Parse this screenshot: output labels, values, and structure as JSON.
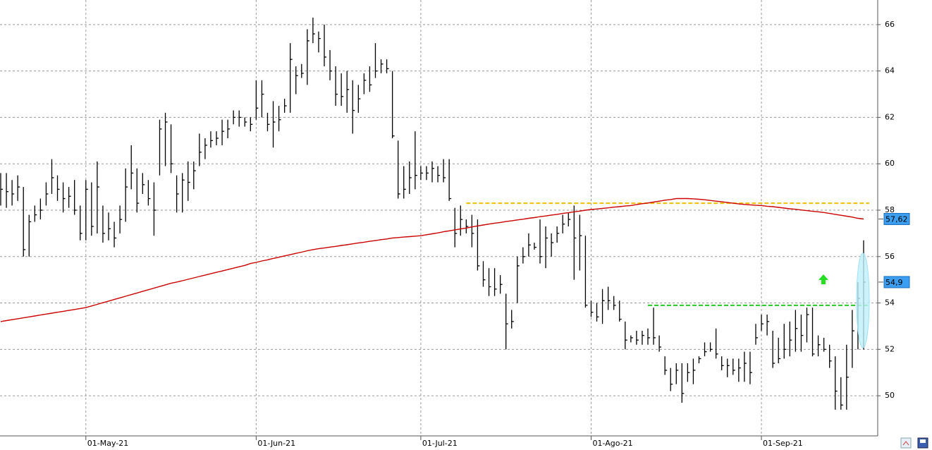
{
  "chart_data": {
    "type": "ohlc",
    "categories": [
      null,
      null,
      null,
      null,
      null,
      null,
      null,
      null,
      null,
      null,
      null,
      null,
      null,
      null,
      null,
      "01-May-21",
      null,
      null,
      null,
      null,
      null,
      null,
      null,
      null,
      null,
      null,
      null,
      null,
      null,
      null,
      null,
      null,
      null,
      null,
      null,
      null,
      null,
      null,
      null,
      null,
      null,
      null,
      null,
      null,
      null,
      "01-Jun-21",
      null,
      null,
      null,
      null,
      null,
      null,
      null,
      null,
      null,
      null,
      null,
      null,
      null,
      null,
      null,
      null,
      null,
      null,
      null,
      null,
      null,
      null,
      null,
      null,
      null,
      null,
      null,
      null,
      "01-Jul-21",
      null,
      null,
      null,
      null,
      null,
      null,
      null,
      null,
      null,
      null,
      null,
      null,
      null,
      null,
      null,
      null,
      null,
      null,
      null,
      null,
      null,
      null,
      null,
      null,
      null,
      null,
      null,
      null,
      null,
      "01-Ago-21",
      null,
      null,
      null,
      null,
      null,
      null,
      null,
      null,
      null,
      null,
      null,
      null,
      null,
      null,
      null,
      null,
      null,
      null,
      null,
      null,
      null,
      null,
      null,
      null,
      null,
      null,
      null,
      null,
      null,
      "01-Sep-21",
      null,
      null,
      null,
      null,
      null,
      null,
      null,
      null,
      null,
      null,
      null,
      null,
      null,
      null,
      null,
      null,
      null,
      null
    ],
    "high": [
      59.6,
      59.6,
      59.3,
      59.5,
      59.0,
      57.8,
      58.2,
      58.5,
      59.2,
      60.2,
      59.5,
      59.2,
      59.0,
      59.3,
      58.2,
      59.3,
      59.2,
      60.1,
      58.2,
      57.9,
      57.5,
      58.2,
      59.8,
      60.8,
      59.8,
      59.6,
      59.3,
      59.2,
      61.9,
      62.2,
      61.7,
      59.5,
      59.6,
      60.1,
      60.1,
      61.3,
      61.1,
      61.4,
      61.4,
      61.9,
      61.9,
      62.3,
      62.3,
      62.0,
      62.0,
      63.6,
      63.6,
      62.2,
      62.7,
      62.5,
      62.8,
      65.2,
      64.2,
      64.3,
      65.8,
      66.3,
      65.7,
      66.0,
      64.9,
      64.2,
      63.9,
      64.0,
      63.6,
      63.4,
      63.9,
      64.2,
      65.2,
      64.5,
      64.5,
      64.0,
      61.0,
      59.9,
      60.1,
      61.4,
      59.9,
      59.9,
      60.1,
      59.9,
      60.2,
      60.2,
      58.1,
      58.2,
      57.6,
      57.8,
      57.6,
      55.8,
      55.5,
      55.5,
      55.2,
      54.4,
      53.7,
      56.0,
      56.4,
      57.0,
      56.6,
      57.6,
      57.3,
      57.0,
      57.3,
      57.8,
      57.9,
      58.2,
      57.8,
      56.9,
      54.1,
      54.0,
      54.6,
      54.7,
      54.3,
      54.1,
      53.2,
      52.6,
      52.8,
      52.8,
      52.9,
      53.8,
      52.6,
      51.7,
      51.2,
      51.4,
      51.4,
      51.4,
      51.6,
      51.7,
      52.3,
      52.3,
      52.9,
      51.7,
      51.6,
      51.6,
      51.6,
      51.9,
      51.9,
      53.1,
      53.5,
      53.5,
      52.8,
      52.5,
      53.1,
      53.2,
      53.7,
      53.5,
      53.8,
      53.8,
      52.6,
      52.5,
      52.2,
      51.7,
      50.8,
      52.2,
      53.7,
      54.9,
      56.7
    ],
    "low": [
      58.2,
      58.1,
      58.2,
      58.4,
      56.0,
      56.0,
      57.5,
      57.6,
      58.2,
      58.7,
      58.4,
      57.9,
      58.1,
      57.8,
      56.7,
      56.7,
      56.9,
      57.0,
      56.6,
      56.7,
      56.4,
      57.0,
      57.5,
      58.9,
      57.9,
      58.7,
      58.2,
      56.9,
      59.5,
      59.9,
      59.6,
      57.9,
      57.9,
      58.4,
      58.9,
      59.9,
      60.2,
      60.7,
      60.8,
      60.8,
      61.1,
      61.7,
      61.6,
      61.6,
      61.4,
      61.9,
      62.0,
      61.4,
      60.7,
      61.4,
      62.2,
      62.2,
      63.0,
      63.7,
      63.4,
      65.2,
      64.8,
      64.2,
      63.6,
      62.5,
      62.5,
      62.2,
      61.3,
      62.2,
      63.0,
      63.1,
      63.7,
      63.9,
      63.9,
      61.1,
      58.5,
      58.5,
      58.7,
      58.9,
      59.3,
      59.3,
      59.2,
      59.2,
      59.2,
      58.4,
      56.4,
      56.9,
      57.0,
      56.4,
      55.4,
      54.7,
      54.3,
      54.3,
      54.4,
      52.0,
      52.9,
      54.0,
      55.7,
      56.0,
      56.3,
      55.7,
      55.5,
      56.0,
      56.6,
      57.0,
      57.3,
      55.0,
      55.4,
      53.8,
      53.4,
      53.2,
      53.1,
      53.7,
      53.7,
      53.2,
      52.0,
      52.3,
      52.2,
      52.2,
      52.2,
      52.2,
      51.9,
      50.9,
      50.2,
      50.5,
      49.7,
      50.6,
      50.5,
      51.4,
      51.7,
      51.9,
      51.6,
      51.1,
      50.8,
      50.9,
      50.6,
      50.6,
      50.5,
      52.2,
      52.8,
      52.6,
      51.2,
      51.4,
      51.6,
      51.7,
      51.9,
      51.9,
      52.3,
      51.7,
      51.7,
      51.9,
      51.2,
      49.4,
      49.4,
      49.4,
      51.2,
      52.0,
      52.0
    ],
    "close": [
      58.9,
      58.8,
      58.7,
      59.0,
      56.3,
      57.5,
      57.8,
      58.0,
      58.7,
      59.4,
      58.9,
      58.5,
      58.6,
      58.0,
      57.0,
      58.9,
      57.3,
      59.0,
      57.0,
      57.2,
      56.8,
      57.6,
      59.0,
      59.6,
      58.3,
      59.1,
      58.5,
      58.0,
      61.5,
      61.8,
      60.0,
      58.7,
      59.3,
      59.2,
      59.7,
      60.5,
      60.8,
      61.0,
      61.1,
      61.4,
      61.5,
      62.0,
      62.0,
      61.8,
      61.7,
      62.4,
      63.0,
      61.7,
      61.8,
      61.9,
      62.5,
      64.5,
      63.8,
      63.9,
      65.3,
      65.6,
      65.4,
      64.6,
      64.0,
      63.0,
      62.9,
      63.2,
      62.3,
      62.8,
      63.6,
      63.4,
      64.0,
      64.3,
      64.1,
      61.2,
      58.7,
      58.9,
      59.4,
      59.5,
      59.6,
      59.6,
      59.8,
      59.5,
      59.4,
      58.5,
      57.0,
      57.6,
      57.3,
      57.0,
      55.6,
      55.0,
      54.7,
      54.6,
      54.8,
      53.1,
      53.2,
      55.6,
      56.0,
      56.5,
      56.4,
      56.0,
      56.8,
      56.6,
      57.0,
      57.4,
      57.6,
      56.8,
      56.9,
      53.9,
      53.6,
      53.4,
      54.1,
      54.1,
      53.9,
      53.3,
      52.4,
      52.5,
      52.4,
      52.6,
      52.5,
      52.5,
      52.1,
      51.1,
      50.5,
      51.1,
      50.1,
      51.0,
      51.1,
      51.6,
      51.9,
      52.0,
      51.8,
      51.3,
      51.3,
      51.1,
      51.2,
      51.4,
      51.0,
      52.5,
      53.1,
      53.2,
      51.4,
      51.6,
      52.0,
      52.4,
      52.9,
      52.6,
      53.5,
      51.8,
      52.2,
      52.0,
      51.5,
      50.2,
      49.6,
      50.8,
      52.8,
      54.2,
      54.9
    ],
    "bar_color": "#000000",
    "moving_average": {
      "color": "#cc0000",
      "values": [
        53.2,
        53.24,
        53.28,
        53.32,
        53.36,
        53.4,
        53.44,
        53.48,
        53.52,
        53.56,
        53.6,
        53.64,
        53.68,
        53.72,
        53.76,
        53.8,
        53.87,
        53.94,
        54.01,
        54.08,
        54.15,
        54.22,
        54.29,
        54.36,
        54.43,
        54.5,
        54.57,
        54.64,
        54.71,
        54.78,
        54.85,
        54.9,
        54.96,
        55.02,
        55.08,
        55.14,
        55.2,
        55.26,
        55.32,
        55.38,
        55.44,
        55.5,
        55.56,
        55.62,
        55.7,
        55.75,
        55.81,
        55.86,
        55.92,
        55.97,
        56.03,
        56.08,
        56.14,
        56.19,
        56.25,
        56.3,
        56.34,
        56.37,
        56.41,
        56.44,
        56.48,
        56.51,
        56.55,
        56.59,
        56.62,
        56.66,
        56.69,
        56.73,
        56.76,
        56.8,
        56.82,
        56.84,
        56.86,
        56.88,
        56.9,
        56.94,
        56.98,
        57.02,
        57.07,
        57.11,
        57.15,
        57.19,
        57.23,
        57.28,
        57.32,
        57.36,
        57.4,
        57.44,
        57.47,
        57.51,
        57.54,
        57.58,
        57.61,
        57.65,
        57.68,
        57.72,
        57.75,
        57.79,
        57.82,
        57.86,
        57.89,
        57.93,
        57.96,
        58.0,
        58.03,
        58.05,
        58.08,
        58.1,
        58.13,
        58.15,
        58.18,
        58.2,
        58.24,
        58.28,
        58.31,
        58.35,
        58.39,
        58.43,
        58.46,
        58.5,
        58.5,
        58.5,
        58.49,
        58.47,
        58.45,
        58.42,
        58.39,
        58.36,
        58.33,
        58.3,
        58.27,
        58.25,
        58.23,
        58.21,
        58.2,
        58.17,
        58.15,
        58.12,
        58.09,
        58.06,
        58.04,
        58.01,
        57.98,
        57.95,
        57.93,
        57.9,
        57.86,
        57.82,
        57.78,
        57.74,
        57.7,
        57.65,
        57.62
      ]
    },
    "hlines": [
      {
        "value": 58.3,
        "color": "#f0c000",
        "from": 82
      },
      {
        "value": 53.9,
        "color": "#22cc22",
        "from": 114
      }
    ],
    "price_labels": [
      {
        "value": 57.62,
        "label": "57,62"
      },
      {
        "value": 54.9,
        "label": "54,9"
      }
    ],
    "ylim": [
      48.27,
      67.06
    ],
    "yticks": [
      50,
      52,
      54,
      56,
      58,
      60,
      62,
      64,
      66
    ],
    "grid": true
  }
}
